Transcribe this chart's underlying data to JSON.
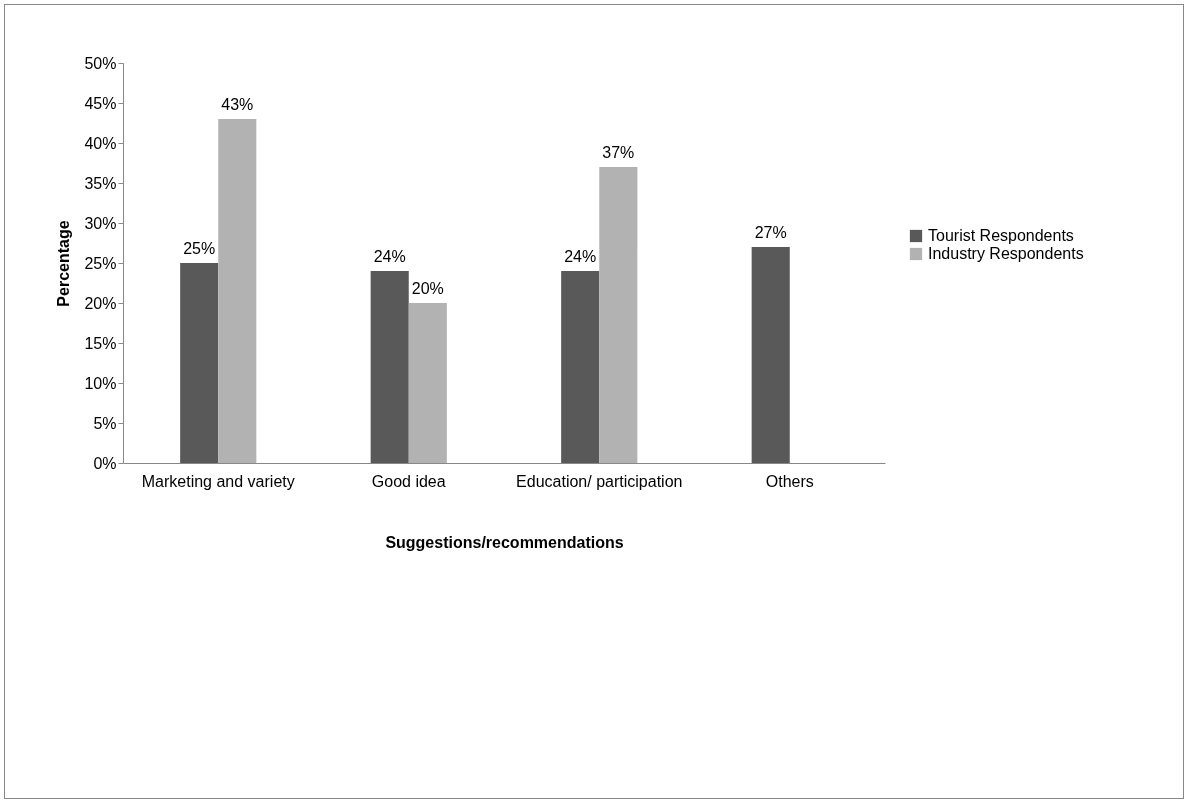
{
  "chart_data": {
    "type": "bar",
    "xlabel": "Suggestions/recommendations",
    "ylabel": "Percentage",
    "categories": [
      "Marketing and variety",
      "Good idea",
      "Education/ participation",
      "Others"
    ],
    "series": [
      {
        "name": "Tourist Respondents",
        "color": "#595959",
        "values": [
          25,
          24,
          24,
          27
        ],
        "value_labels": [
          "25%",
          "24%",
          "24%",
          "27%"
        ]
      },
      {
        "name": "Industry Respondents",
        "color": "#b2b2b2",
        "values": [
          43,
          20,
          37,
          null
        ],
        "value_labels": [
          "43%",
          "20%",
          "37%",
          null
        ]
      }
    ],
    "ylim": [
      0,
      50
    ],
    "yticks": [
      {
        "value": 0,
        "label": "0%"
      },
      {
        "value": 5,
        "label": "5%"
      },
      {
        "value": 10,
        "label": "10%"
      },
      {
        "value": 15,
        "label": "15%"
      },
      {
        "value": 20,
        "label": "20%"
      },
      {
        "value": 25,
        "label": "25%"
      },
      {
        "value": 30,
        "label": "30%"
      },
      {
        "value": 35,
        "label": "35%"
      },
      {
        "value": 40,
        "label": "40%"
      },
      {
        "value": 45,
        "label": "45%"
      },
      {
        "value": 50,
        "label": "50%"
      }
    ],
    "grid": false,
    "legend": "right"
  }
}
